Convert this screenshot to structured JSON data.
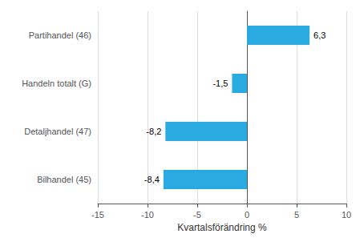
{
  "chart_data": {
    "type": "bar",
    "orientation": "horizontal",
    "categories": [
      "Bilhandel (45)",
      "Detaljhandel (47)",
      "Handeln totalt (G)",
      "Partihandel (46)"
    ],
    "values": [
      -8.4,
      -8.2,
      -1.5,
      6.3
    ],
    "value_labels": [
      "-8,4",
      "-8,2",
      "-1,5",
      "6,3"
    ],
    "data_labels": true,
    "color": "#29abe2",
    "xlabel": "Kvartalsförändring %",
    "xlim": [
      -15,
      10
    ],
    "xticks": [
      -15,
      -10,
      -5,
      0,
      5,
      10
    ],
    "grid": true
  }
}
